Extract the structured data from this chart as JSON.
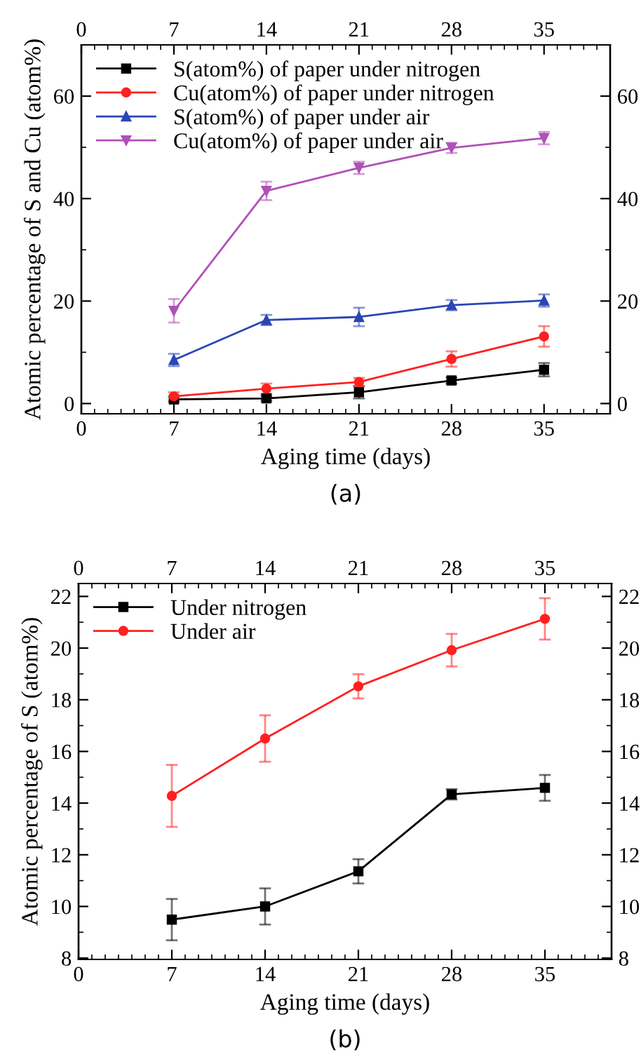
{
  "chart_data": [
    {
      "type": "line",
      "xlabel": "Aging time (days)",
      "ylabel": "Atomic percentage of S and Cu (atom%)",
      "annotations": [
        "(a)"
      ],
      "x": [
        7,
        14,
        21,
        28,
        35
      ],
      "xlim": [
        0,
        40
      ],
      "xticks": [
        0,
        7,
        14,
        21,
        28,
        35
      ],
      "x2lim": [
        0,
        40
      ],
      "x2ticks": [
        0,
        7,
        14,
        21,
        28,
        35
      ],
      "ylim": [
        -2,
        70
      ],
      "yticks": [
        0,
        20,
        40,
        60
      ],
      "y2lim": [
        -2,
        70
      ],
      "y2ticks": [
        0,
        20,
        40,
        60
      ],
      "legend": "top left",
      "grid": false,
      "series": [
        {
          "name": "S(atom%) of paper under nitrogen",
          "color": "#000000",
          "marker": "square",
          "values": [
            0.8,
            1.0,
            2.2,
            4.5,
            6.6
          ],
          "errors": [
            0.5,
            0.5,
            1.2,
            0.6,
            1.3
          ]
        },
        {
          "name": "Cu(atom%) of paper under nitrogen",
          "color": "#ff2020",
          "marker": "circle",
          "values": [
            1.4,
            2.9,
            4.2,
            8.7,
            13.1
          ],
          "errors": [
            0.8,
            1.0,
            0.8,
            1.5,
            2.0
          ]
        },
        {
          "name": "S(atom%) of paper under air",
          "color": "#2a45b5",
          "marker": "triangle",
          "values": [
            8.5,
            16.3,
            16.9,
            19.2,
            20.1
          ],
          "errors": [
            1.2,
            1.0,
            1.8,
            1.0,
            1.2
          ]
        },
        {
          "name": "Cu(atom%) of paper under air",
          "color": "#b050b8",
          "marker": "triangle_down",
          "values": [
            18.1,
            41.5,
            46.0,
            49.9,
            51.8
          ],
          "errors": [
            2.3,
            1.8,
            1.2,
            1.0,
            1.2
          ]
        }
      ]
    },
    {
      "type": "line",
      "xlabel": "Aging time (days)",
      "ylabel": "Atomic percentage of S (atom%)",
      "annotations": [
        "(b)"
      ],
      "x": [
        7,
        14,
        21,
        28,
        35
      ],
      "xlim": [
        0,
        40
      ],
      "xticks": [
        0,
        7,
        14,
        21,
        28,
        35
      ],
      "x2lim": [
        0,
        40
      ],
      "x2ticks": [
        0,
        7,
        14,
        21,
        28,
        35
      ],
      "ylim": [
        7.95,
        22.5
      ],
      "yticks": [
        8,
        10,
        12,
        14,
        16,
        18,
        20,
        22
      ],
      "y2lim": [
        7.95,
        22.5
      ],
      "y2ticks": [
        8,
        10,
        12,
        14,
        16,
        18,
        20,
        22
      ],
      "legend": "top left",
      "grid": false,
      "series": [
        {
          "name": "Under nitrogen",
          "color": "#000000",
          "marker": "square",
          "values": [
            9.49,
            10.0,
            11.36,
            14.34,
            14.59
          ],
          "errors": [
            0.8,
            0.7,
            0.47,
            0.2,
            0.5
          ]
        },
        {
          "name": "Under air",
          "color": "#ff2020",
          "marker": "circle",
          "values": [
            14.28,
            16.5,
            18.52,
            19.92,
            21.13
          ],
          "errors": [
            1.2,
            0.9,
            0.47,
            0.63,
            0.8
          ]
        }
      ]
    }
  ]
}
